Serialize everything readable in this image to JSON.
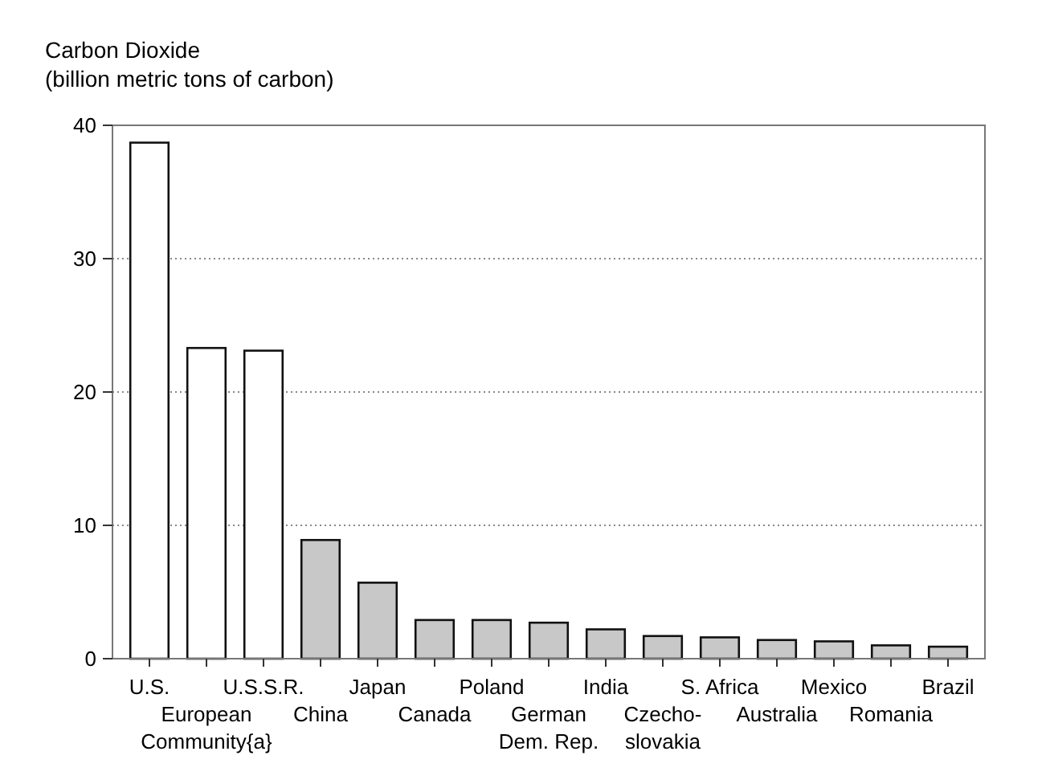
{
  "chart_data": {
    "type": "bar",
    "title": "Carbon Dioxide",
    "ylabel": "(billion metric tons of carbon)",
    "categories": [
      "U.S.",
      "European\nCommunity{a}",
      "U.S.S.R.",
      "China",
      "Japan",
      "Canada",
      "Poland",
      "German\nDem. Rep.",
      "India",
      "Czecho-\nslovakia",
      "S. Africa",
      "Australia",
      "Mexico",
      "Romania",
      "Brazil"
    ],
    "values": [
      38.7,
      23.3,
      23.1,
      8.9,
      5.7,
      2.9,
      2.9,
      2.7,
      2.2,
      1.7,
      1.6,
      1.4,
      1.3,
      1.0,
      0.9
    ],
    "colors": [
      "#ffffff",
      "#ffffff",
      "#ffffff",
      "#c8c8c8",
      "#c8c8c8",
      "#c8c8c8",
      "#c8c8c8",
      "#c8c8c8",
      "#c8c8c8",
      "#c8c8c8",
      "#c8c8c8",
      "#c8c8c8",
      "#c8c8c8",
      "#c8c8c8",
      "#c8c8c8"
    ],
    "ylim": [
      0,
      40
    ],
    "yticks": [
      0,
      10,
      20,
      30,
      40
    ],
    "grid": "y"
  }
}
